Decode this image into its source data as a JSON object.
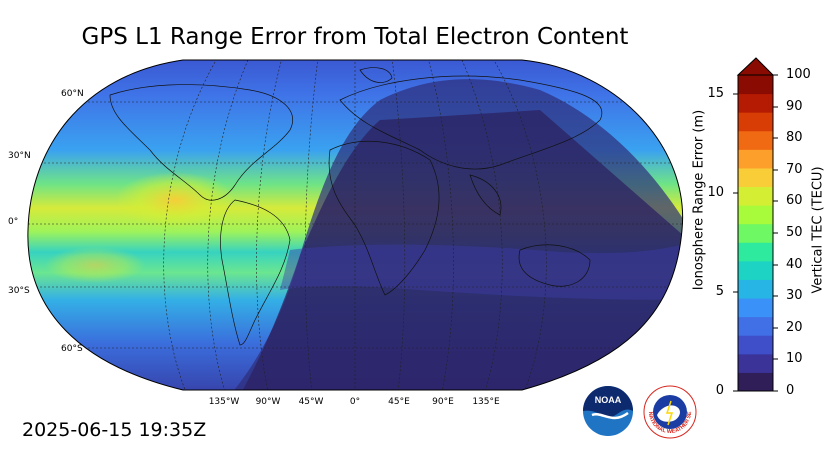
{
  "title": "GPS L1 Range Error from Total Electron Content",
  "timestamp": "2025-06-15 19:35Z",
  "lat_labels": [
    "60°N",
    "30°N",
    "0°",
    "30°S",
    "60°S"
  ],
  "lon_labels": [
    "135°W",
    "90°W",
    "45°W",
    "0°",
    "45°E",
    "90°E",
    "135°E"
  ],
  "colorbar": {
    "left_label": "Ionosphere Range Error (m)",
    "left_ticks": [
      "0",
      "5",
      "10",
      "15"
    ],
    "right_label": "Vertical TEC (TECU)",
    "right_ticks": [
      "0",
      "10",
      "20",
      "30",
      "40",
      "50",
      "60",
      "70",
      "80",
      "90",
      "100"
    ],
    "colors": [
      "#2f1e58",
      "#3b3398",
      "#3f4fc9",
      "#4170e6",
      "#3a92f8",
      "#27b5e6",
      "#1dd3c4",
      "#2eea9e",
      "#6ef864",
      "#a7fb3a",
      "#d4ee34",
      "#f8cd37",
      "#fd9f2b",
      "#f06a14",
      "#d83d06",
      "#b51b02",
      "#8a0b01"
    ]
  },
  "logos": {
    "noaa": "NOAA",
    "nws": "NATIONAL WEATHER SERVICE"
  }
}
